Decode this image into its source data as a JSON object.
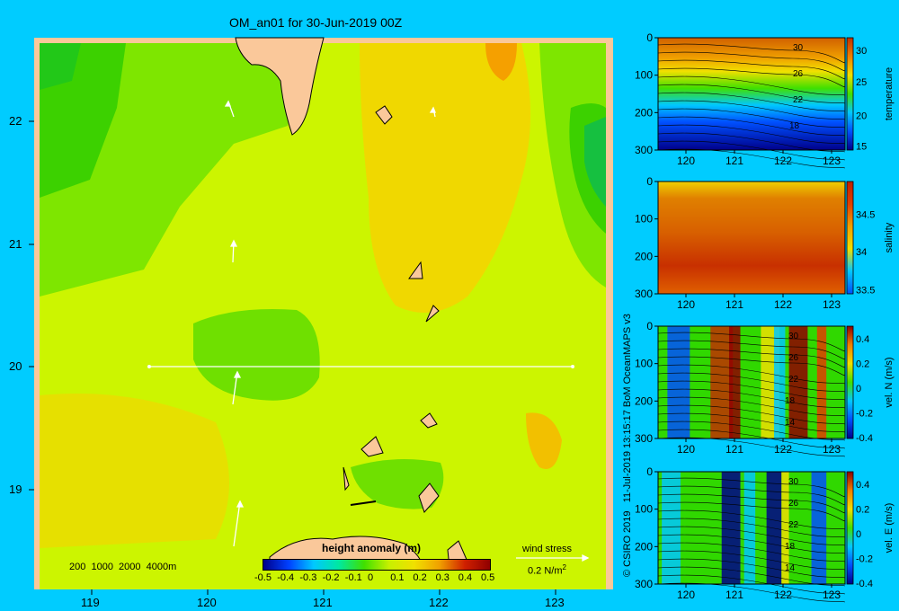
{
  "map": {
    "title": "OM_an01 for 30-Jun-2019 00Z",
    "x_ticks": [
      "119",
      "120",
      "121",
      "122",
      "123"
    ],
    "y_ticks": [
      "22",
      "21",
      "20",
      "19"
    ],
    "depth_legend": "200  1000  2000  4000m",
    "colorbar_label": "height anomaly  (m)",
    "colorbar_ticks": [
      "-0.5",
      "-0.4",
      "-0.3",
      "-0.2",
      "-0.1",
      "0",
      "0.1",
      "0.2",
      "0.3",
      "0.4",
      "0.5"
    ],
    "wind_label": "wind stress",
    "wind_scale": "0.2 N/m",
    "wind_scale_sup": "2"
  },
  "credit": "© CSIRO 2019   11-Jul-2019 13:15:17 BoM OceanMAPS v3",
  "panels": [
    {
      "label": "temperature",
      "y_ticks": [
        "0",
        "100",
        "200",
        "300"
      ],
      "x_ticks": [
        "120",
        "121",
        "122",
        "123"
      ],
      "cbar_ticks": [
        "30",
        "25",
        "20",
        "15"
      ],
      "contour_labels": [
        "30",
        "26",
        "22",
        "18"
      ]
    },
    {
      "label": "salinity",
      "y_ticks": [
        "0",
        "100",
        "200",
        "300"
      ],
      "x_ticks": [
        "120",
        "121",
        "122",
        "123"
      ],
      "cbar_ticks": [
        "34.5",
        "34",
        "33.5"
      ],
      "contour_labels": []
    },
    {
      "label": "vel. N  (m/s)",
      "y_ticks": [
        "0",
        "100",
        "200",
        "300"
      ],
      "x_ticks": [
        "120",
        "121",
        "122",
        "123"
      ],
      "cbar_ticks": [
        "0.4",
        "0.2",
        "0",
        "-0.2",
        "-0.4"
      ],
      "contour_labels": [
        "30",
        "26",
        "22",
        "18",
        "14"
      ]
    },
    {
      "label": "vel. E  (m/s)",
      "y_ticks": [
        "0",
        "100",
        "200",
        "300"
      ],
      "x_ticks": [
        "120",
        "121",
        "122",
        "123"
      ],
      "cbar_ticks": [
        "0.4",
        "0.2",
        "0",
        "-0.2",
        "-0.4"
      ],
      "contour_labels": [
        "30",
        "26",
        "22",
        "18",
        "14"
      ]
    }
  ],
  "chart_data": [
    {
      "type": "heatmap",
      "title": "OM_an01 for 30-Jun-2019 00Z",
      "xlabel": "",
      "ylabel": "",
      "xlim": [
        118.5,
        123.5
      ],
      "ylim": [
        18.3,
        22.7
      ],
      "value_label": "height anomaly  (m)",
      "vlim": [
        -0.5,
        0.5
      ],
      "section_line": {
        "lon": [
          119.5,
          123.2
        ],
        "lat": [
          20.0,
          20.0
        ]
      }
    },
    {
      "type": "heatmap",
      "name": "temperature",
      "xlim": [
        119.5,
        123.3
      ],
      "ylim": [
        300,
        0
      ],
      "vlim": [
        14,
        32
      ],
      "contours": [
        30,
        26,
        22,
        18
      ]
    },
    {
      "type": "heatmap",
      "name": "salinity",
      "xlim": [
        119.5,
        123.3
      ],
      "ylim": [
        300,
        0
      ],
      "vlim": [
        33.5,
        34.9
      ]
    },
    {
      "type": "heatmap",
      "name": "vel. N  (m/s)",
      "xlim": [
        119.5,
        123.3
      ],
      "ylim": [
        300,
        0
      ],
      "vlim": [
        -0.45,
        0.45
      ],
      "contours": [
        30,
        26,
        22,
        18,
        14
      ]
    },
    {
      "type": "heatmap",
      "name": "vel. E  (m/s)",
      "xlim": [
        119.5,
        123.3
      ],
      "ylim": [
        300,
        0
      ],
      "vlim": [
        -0.45,
        0.45
      ],
      "contours": [
        30,
        26,
        22,
        18,
        14
      ]
    }
  ]
}
